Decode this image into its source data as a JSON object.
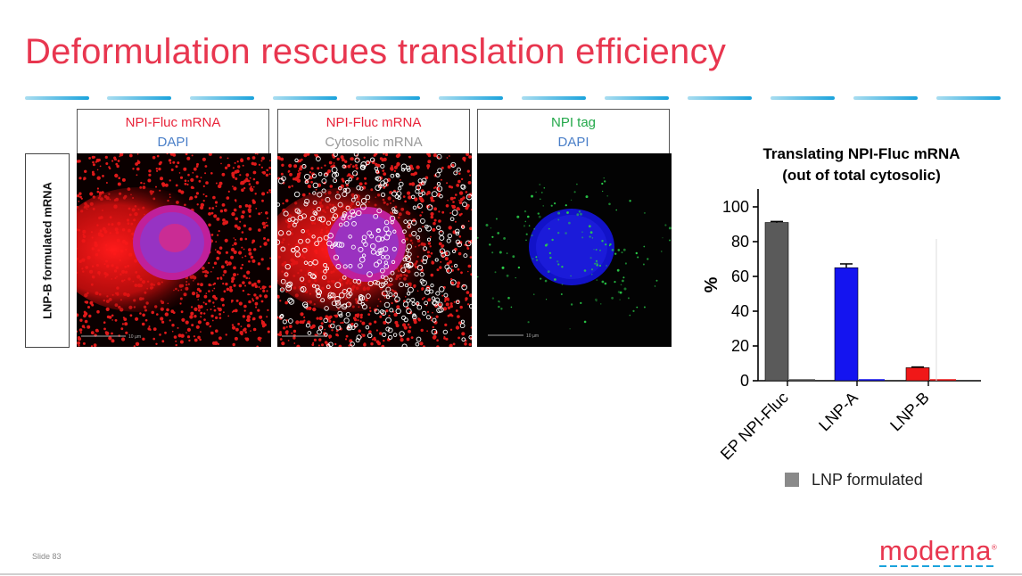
{
  "slide": {
    "title": "Deformulation rescues translation efficiency",
    "slide_number": "Slide 83",
    "logo_text": "moderna",
    "logo_mark": "®"
  },
  "row_label": "LNP-B formulated mRNA",
  "panels": [
    {
      "line1": "NPI-Fluc mRNA",
      "line2": "DAPI"
    },
    {
      "line1": "NPI-Fluc mRNA",
      "line2": "Cytosolic mRNA"
    },
    {
      "line1": "NPI tag",
      "line2": "DAPI"
    }
  ],
  "scale_bar": "10 µm",
  "chart_data": {
    "type": "bar",
    "title": "Translating NPI-Fluc mRNA",
    "subtitle": "(out of total cytosolic)",
    "ylabel": "%",
    "xlabel": "",
    "ylim": [
      0,
      100
    ],
    "yticks": [
      0,
      20,
      40,
      60,
      80,
      100
    ],
    "categories": [
      "EP NPI-Fluc",
      "LNP-A",
      "LNP-B"
    ],
    "values": [
      91,
      65,
      7.5
    ],
    "errors": [
      0.6,
      2.2,
      0.4
    ],
    "colors": [
      "#5a5a5a",
      "#1414f0",
      "#f01818"
    ],
    "legend": {
      "label": "LNP formulated",
      "color": "#8a8a8a",
      "placement": "bottom"
    }
  }
}
